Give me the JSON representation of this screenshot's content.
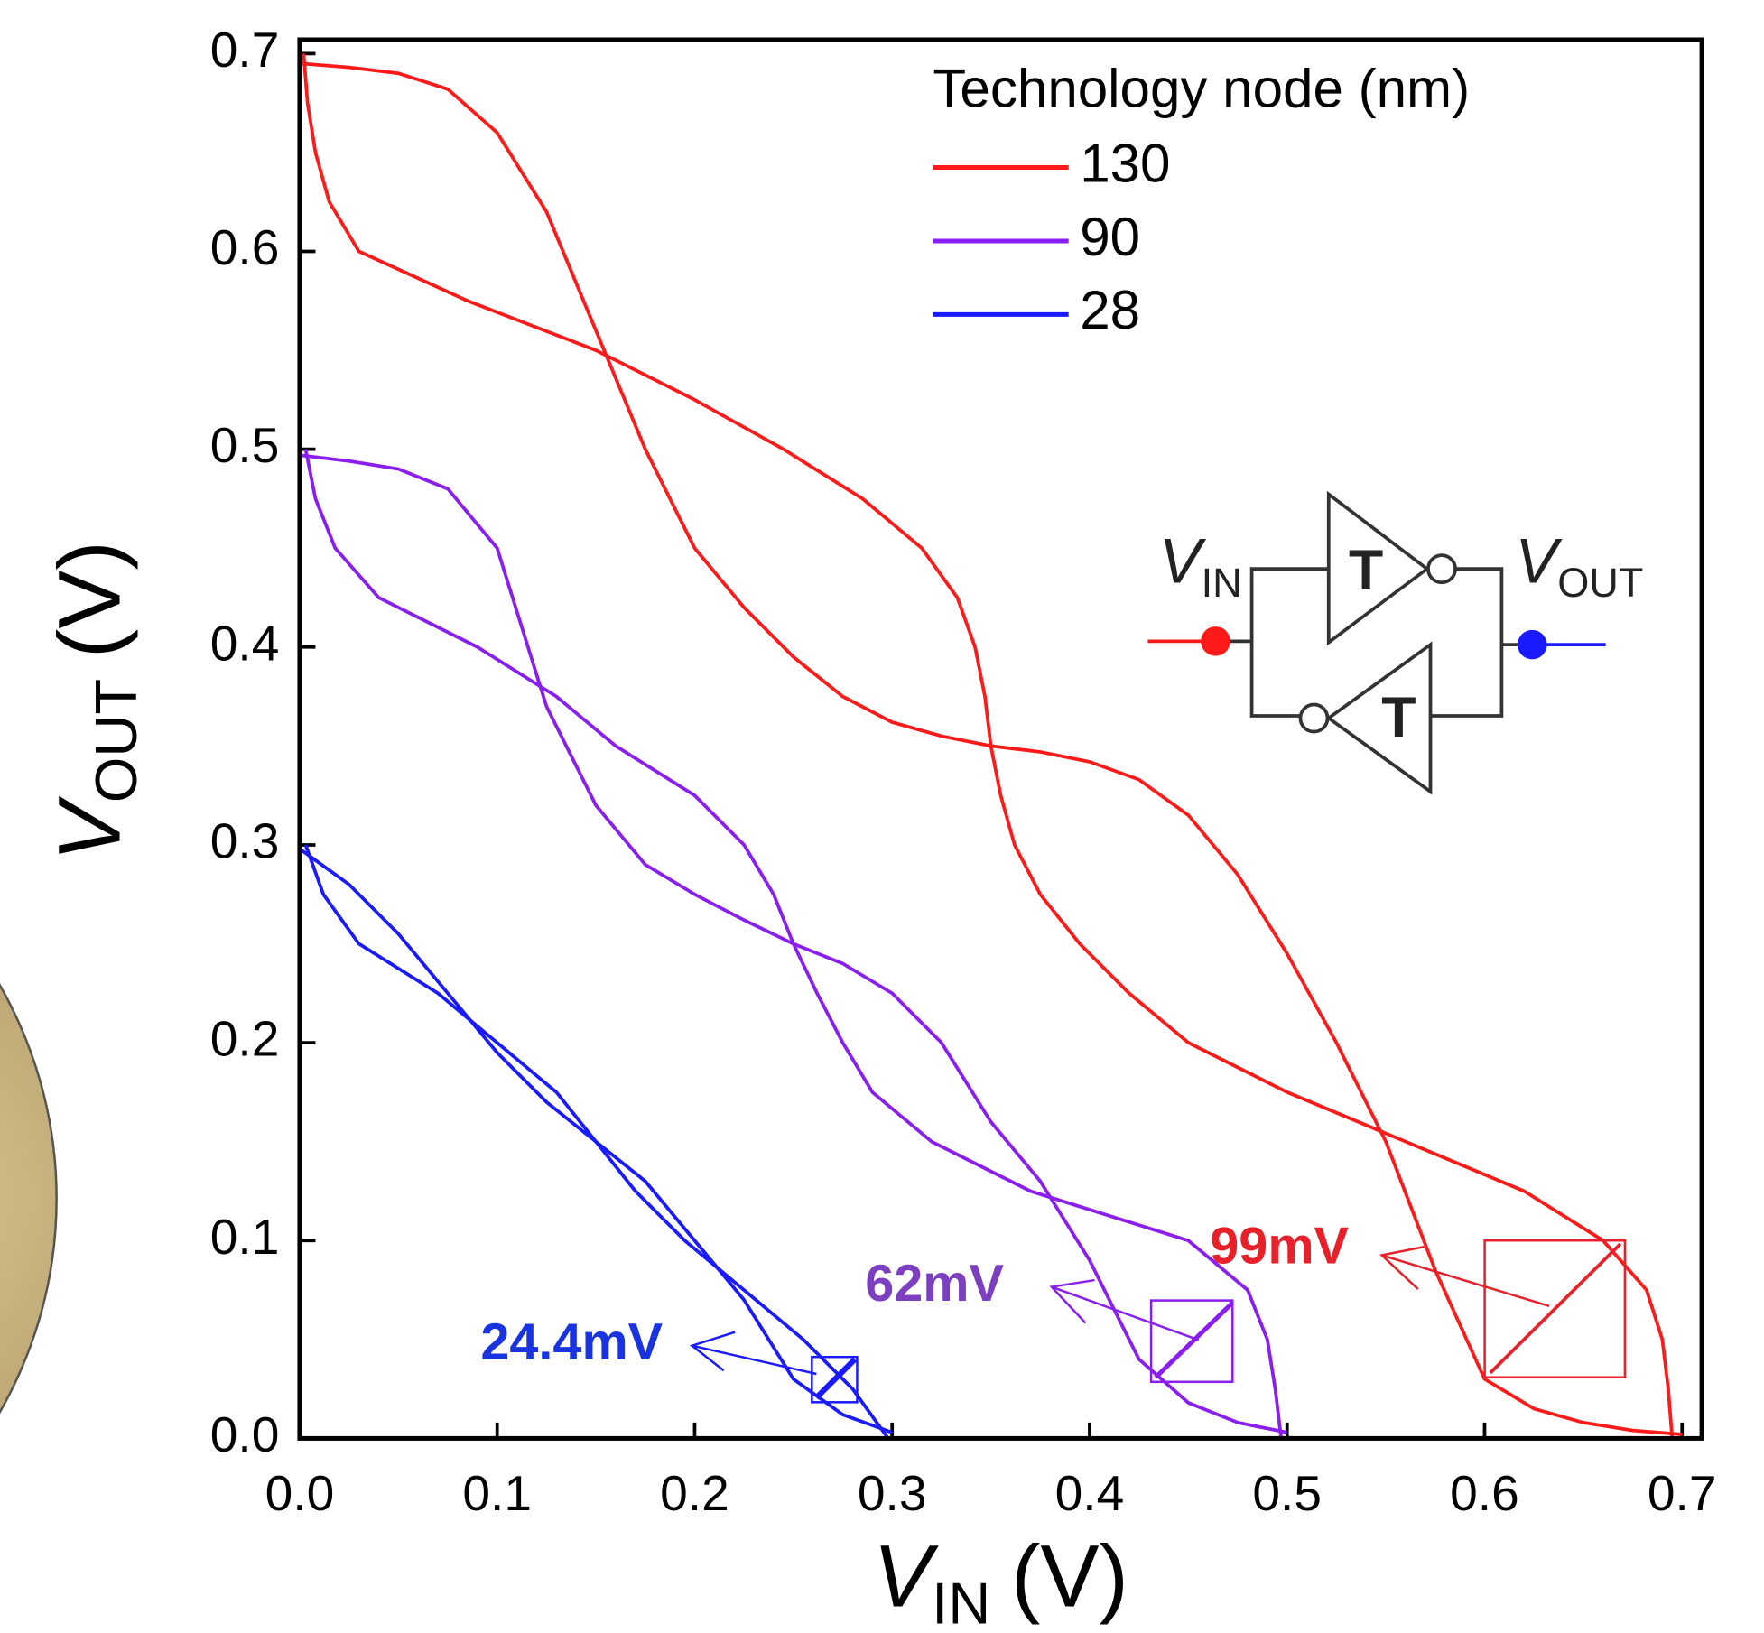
{
  "chart_data": {
    "type": "line",
    "xlabel": {
      "main": "V",
      "sub": "IN",
      "unit": "(V)"
    },
    "ylabel": {
      "main": "V",
      "sub": "OUT",
      "unit": "(V)"
    },
    "xlim": [
      0,
      0.71
    ],
    "ylim": [
      0,
      0.707
    ],
    "xticks": [
      {
        "value": 0,
        "label": "0.0"
      },
      0.1,
      0.2,
      0.3,
      0.4,
      0.5,
      0.6,
      0.7
    ],
    "yticks": [
      {
        "value": 0,
        "label": "0.0"
      },
      0.1,
      0.2,
      0.3,
      0.4,
      0.5,
      0.6,
      0.7
    ],
    "legend_title": "Technology node (nm)",
    "series": [
      {
        "name": "130",
        "color": "#ff1a1a",
        "x": [
          0,
          0.025,
          0.05,
          0.075,
          0.1,
          0.125,
          0.15,
          0.175,
          0.2,
          0.225,
          0.25,
          0.275,
          0.3,
          0.325,
          0.35,
          0.375,
          0.4,
          0.425,
          0.45,
          0.475,
          0.5,
          0.525,
          0.55,
          0.575,
          0.6,
          0.625,
          0.65,
          0.675,
          0.7
        ],
        "values": [
          0.695,
          0.693,
          0.69,
          0.682,
          0.66,
          0.62,
          0.56,
          0.5,
          0.45,
          0.42,
          0.395,
          0.375,
          0.362,
          0.355,
          0.35,
          0.347,
          0.342,
          0.333,
          0.315,
          0.285,
          0.245,
          0.2,
          0.15,
          0.085,
          0.03,
          0.015,
          0.008,
          0.004,
          0.002
        ]
      },
      {
        "name": "90",
        "color": "#8a1ef0",
        "x": [
          0,
          0.025,
          0.05,
          0.075,
          0.1,
          0.125,
          0.15,
          0.175,
          0.2,
          0.225,
          0.25,
          0.275,
          0.3,
          0.325,
          0.35,
          0.375,
          0.4,
          0.425,
          0.45,
          0.475,
          0.5
        ],
        "values": [
          0.497,
          0.494,
          0.49,
          0.48,
          0.45,
          0.37,
          0.32,
          0.29,
          0.275,
          0.262,
          0.25,
          0.24,
          0.225,
          0.2,
          0.16,
          0.13,
          0.09,
          0.04,
          0.018,
          0.008,
          0.003
        ]
      },
      {
        "name": "28",
        "color": "#1a1aff",
        "x": [
          0,
          0.025,
          0.05,
          0.075,
          0.1,
          0.125,
          0.15,
          0.175,
          0.2,
          0.225,
          0.25,
          0.275,
          0.3
        ],
        "values": [
          0.298,
          0.28,
          0.255,
          0.225,
          0.195,
          0.17,
          0.15,
          0.13,
          0.1,
          0.07,
          0.03,
          0.012,
          0.003
        ]
      }
    ],
    "annotations": [
      {
        "text": "99mV",
        "color": "#e8202a"
      },
      {
        "text": "62mV",
        "color": "#7b3fc0"
      },
      {
        "text": "24.4mV",
        "color": "#1a33e0"
      }
    ],
    "inset": {
      "gate_top": "T",
      "gate_bottom": "T",
      "input": {
        "main": "V",
        "sub": "IN"
      },
      "output": {
        "main": "V",
        "sub": "OUT"
      }
    }
  }
}
